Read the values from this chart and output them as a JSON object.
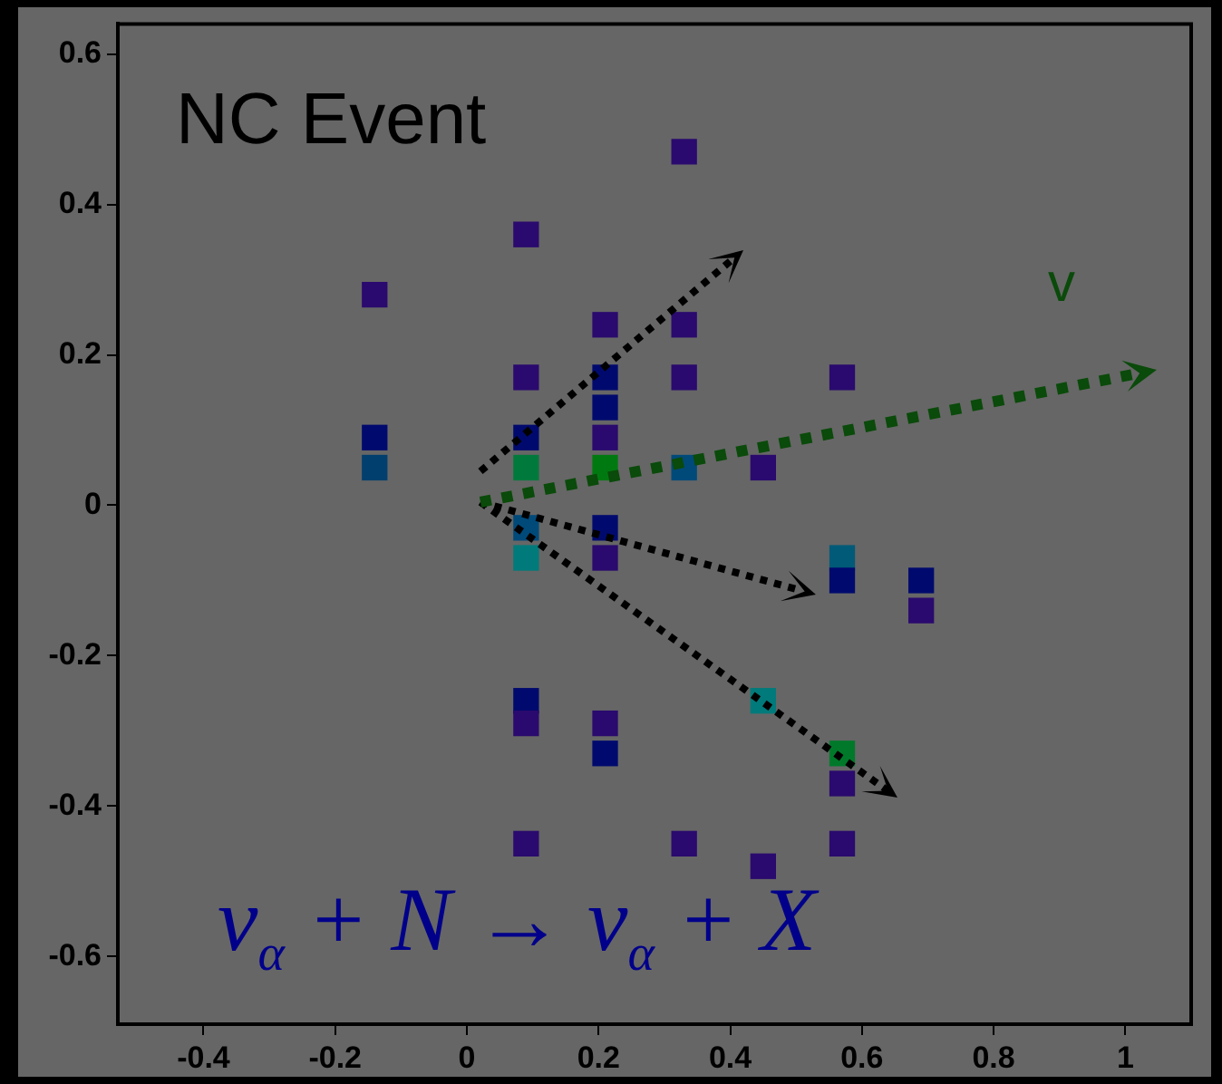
{
  "chart_data": {
    "type": "scatter",
    "marker": "square",
    "x": [
      -0.14,
      -0.14,
      -0.14,
      0.09,
      0.09,
      0.09,
      0.09,
      0.09,
      0.09,
      0.09,
      0.09,
      0.09,
      0.21,
      0.21,
      0.21,
      0.21,
      0.21,
      0.21,
      0.21,
      0.21,
      0.21,
      0.33,
      0.33,
      0.33,
      0.33,
      0.33,
      0.45,
      0.45,
      0.45,
      0.57,
      0.57,
      0.57,
      0.57,
      0.57,
      0.57,
      0.69,
      0.69
    ],
    "values": [
      0.28,
      0.09,
      0.05,
      0.36,
      0.17,
      0.09,
      0.05,
      -0.03,
      -0.07,
      -0.26,
      -0.29,
      -0.45,
      0.24,
      0.17,
      0.13,
      0.09,
      0.05,
      -0.03,
      -0.07,
      -0.29,
      -0.33,
      0.47,
      0.24,
      0.17,
      0.05,
      -0.45,
      0.05,
      -0.26,
      -0.48,
      0.17,
      -0.07,
      -0.1,
      -0.33,
      -0.37,
      -0.45,
      -0.1,
      -0.14
    ],
    "colors": [
      "#2a0a6e",
      "#000a6e",
      "#003f6e",
      "#2a0a6e",
      "#2a0a6e",
      "#000a6e",
      "#007a3c",
      "#004a7a",
      "#007a7a",
      "#000a6e",
      "#2a0a6e",
      "#2a0a6e",
      "#2a0a6e",
      "#000a6e",
      "#000a6e",
      "#2a0a6e",
      "#007a10",
      "#000a6e",
      "#2a0a6e",
      "#2a0a6e",
      "#000a6e",
      "#2a0a6e",
      "#2a0a6e",
      "#2a0a6e",
      "#004a7a",
      "#2a0a6e",
      "#2a0a6e",
      "#007a7a",
      "#2a0a6e",
      "#2a0a6e",
      "#005a78",
      "#000a6e",
      "#007a2a",
      "#2a0a6e",
      "#2a0a6e",
      "#000a6e",
      "#2a0a6e"
    ],
    "xlim": [
      -0.53,
      1.1
    ],
    "ylim": [
      -0.69,
      0.64
    ],
    "xticks": [
      -0.4,
      -0.2,
      0,
      0.2,
      0.4,
      0.6,
      0.8,
      1
    ],
    "yticks": [
      -0.6,
      -0.4,
      -0.2,
      0,
      0.2,
      0.4,
      0.6
    ],
    "annotations": [
      "NC Event",
      "v",
      "ν$_{α}$ + N → ν$_{α}$ + X"
    ]
  }
}
